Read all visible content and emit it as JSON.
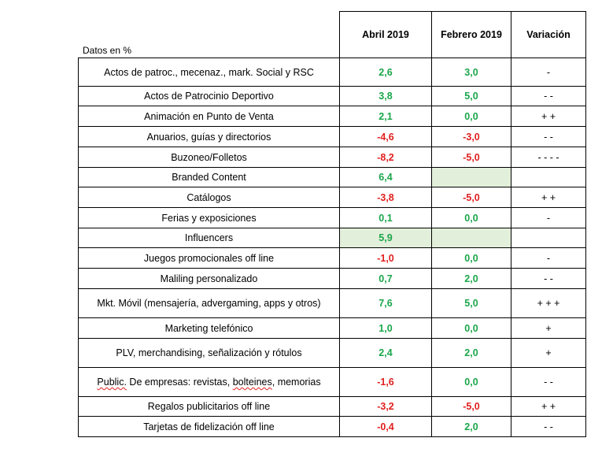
{
  "table": {
    "caption": "Datos en %",
    "headers": [
      "Abril 2019",
      "Febrero 2019",
      "Variación"
    ],
    "rows": [
      {
        "label": "Actos de patroc., mecenaz., mark. Social y RSC",
        "abril": "2,6",
        "febrero": "3,0",
        "variacion": "-"
      },
      {
        "label": "Actos de Patrocinio Deportivo",
        "abril": "3,8",
        "febrero": "5,0",
        "variacion": "-    -"
      },
      {
        "label": "Animación en Punto de Venta",
        "abril": "2,1",
        "febrero": "0,0",
        "variacion": "+ +"
      },
      {
        "label": "Anuarios, guías y directorios",
        "abril": "-4,6",
        "febrero": "-3,0",
        "variacion": "- -"
      },
      {
        "label": "Buzoneo/Folletos",
        "abril": "-8,2",
        "febrero": "-5,0",
        "variacion": "- - - -"
      },
      {
        "label": "Branded Content",
        "abril": "6,4",
        "febrero": "",
        "variacion": ""
      },
      {
        "label": "Catálogos",
        "abril": "-3,8",
        "febrero": "-5,0",
        "variacion": "+ +"
      },
      {
        "label": "Ferias y exposiciones",
        "abril": "0,1",
        "febrero": "0,0",
        "variacion": "-"
      },
      {
        "label": "Influencers",
        "abril": "5,9",
        "febrero": "",
        "variacion": ""
      },
      {
        "label": "Juegos promocionales off line",
        "abril": "-1,0",
        "febrero": "0,0",
        "variacion": "-"
      },
      {
        "label": "Maliling personalizado",
        "abril": "0,7",
        "febrero": "2,0",
        "variacion": "-    -"
      },
      {
        "label": "Mkt. Móvil (mensajería, advergaming, apps y otros)",
        "abril": "7,6",
        "febrero": "5,0",
        "variacion": "+ + +"
      },
      {
        "label": "Marketing telefónico",
        "abril": "1,0",
        "febrero": "0,0",
        "variacion": "+"
      },
      {
        "label": "PLV, merchandising, señalización y rótulos",
        "abril": "2,4",
        "febrero": "2,0",
        "variacion": "+"
      },
      {
        "label_parts": [
          "Public.",
          " De empresas: revistas, ",
          "bolteines",
          ", memorias"
        ],
        "abril": "-1,6",
        "febrero": "0,0",
        "variacion": "-    -"
      },
      {
        "label": "Regalos publicitarios off line",
        "abril": "-3,2",
        "febrero": "-5,0",
        "variacion": "+ +"
      },
      {
        "label": "Tarjetas  de fidelización off line",
        "abril": "-0,4",
        "febrero": "2,0",
        "variacion": "- -"
      }
    ]
  },
  "colors": {
    "positive": "#1aa64a",
    "negative": "#e0201f",
    "highlight": "#e2efda"
  }
}
